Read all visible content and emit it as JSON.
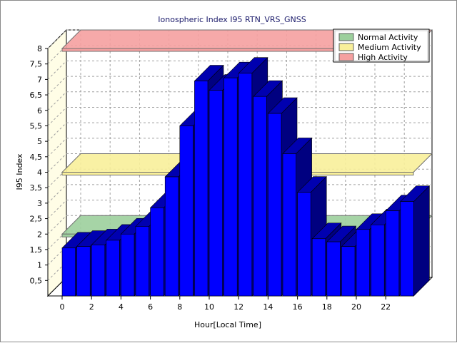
{
  "chart_data": {
    "type": "bar",
    "title": "Ionospheric Index I95 RTN_VRS_GNSS",
    "xlabel": "Hour[Local Time]",
    "ylabel": "I95 Index",
    "ylim": [
      0,
      8
    ],
    "y_ticks": [
      "0,5",
      "1",
      "1,5",
      "2",
      "2,5",
      "3",
      "3,5",
      "4",
      "4,5",
      "5",
      "5,5",
      "6",
      "6,5",
      "7",
      "7,5",
      "8"
    ],
    "x_ticks": [
      "0",
      "2",
      "4",
      "6",
      "8",
      "10",
      "12",
      "14",
      "16",
      "18",
      "20",
      "22"
    ],
    "categories": [
      0,
      1,
      2,
      3,
      4,
      5,
      6,
      7,
      8,
      9,
      10,
      11,
      12,
      13,
      14,
      15,
      16,
      17,
      18,
      19,
      20,
      21,
      22,
      23
    ],
    "values": [
      1.55,
      1.6,
      1.65,
      1.8,
      2.0,
      2.25,
      2.85,
      3.85,
      5.5,
      6.95,
      6.65,
      7.05,
      7.2,
      6.45,
      5.9,
      4.6,
      3.35,
      1.85,
      1.75,
      1.6,
      2.15,
      2.3,
      2.75,
      3.05
    ],
    "bar_color": "#0000ff",
    "grid": true,
    "legend_position": "top-right",
    "thresholds": [
      {
        "name": "Normal Activity",
        "value": 2,
        "color": "#9ccf9c"
      },
      {
        "name": "Medium Activity",
        "value": 4,
        "color": "#f8ef9a"
      },
      {
        "name": "High Activity",
        "value": 8,
        "color": "#f5a0a0"
      }
    ]
  }
}
